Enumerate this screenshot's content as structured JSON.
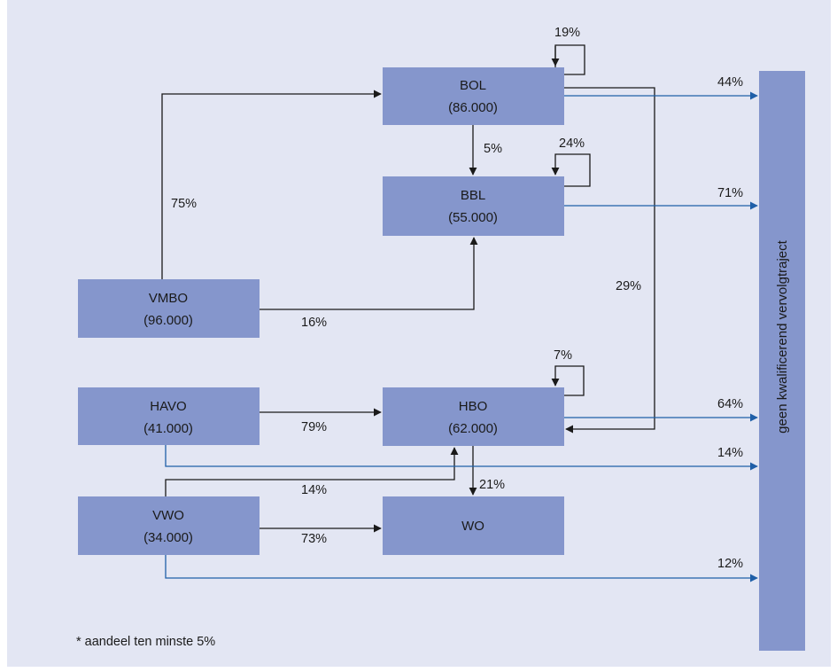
{
  "nodes": {
    "bol": {
      "name": "BOL",
      "count": "(86.000)"
    },
    "bbl": {
      "name": "BBL",
      "count": "(55.000)"
    },
    "vmbo": {
      "name": "VMBO",
      "count": "(96.000)"
    },
    "havo": {
      "name": "HAVO",
      "count": "(41.000)"
    },
    "hbo": {
      "name": "HBO",
      "count": "(62.000)"
    },
    "vwo": {
      "name": "VWO",
      "count": "(34.000)"
    },
    "wo": {
      "name": "WO"
    },
    "exit": {
      "name": "geen kwalificerend vervolgtraject"
    }
  },
  "flows": {
    "bol_self": "19%",
    "bol_to_bbl": "5%",
    "bbl_self": "24%",
    "vmbo_to_bol": "75%",
    "vmbo_to_bbl": "16%",
    "bol_to_hbo": "29%",
    "hbo_self": "7%",
    "havo_to_hbo": "79%",
    "vwo_to_hbo": "14%",
    "hbo_to_wo": "21%",
    "vwo_to_wo": "73%",
    "bol_exit": "44%",
    "bbl_exit": "71%",
    "hbo_exit": "64%",
    "havo_exit": "14%",
    "vwo_exit": "12%"
  },
  "footnote": "* aandeel ten minste 5%",
  "colors": {
    "panel": "#e3e6f3",
    "box": "#8596cc",
    "arrow_black": "#1a1a1a",
    "arrow_blue": "#1f5fa8"
  }
}
